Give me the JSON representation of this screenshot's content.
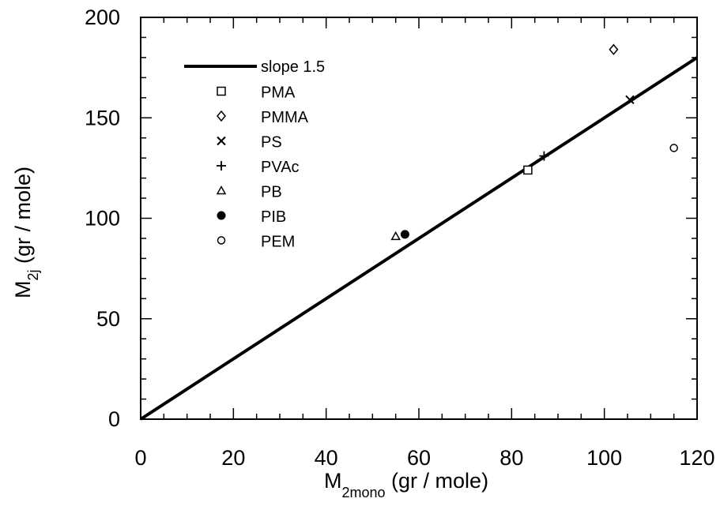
{
  "chart_data": {
    "type": "scatter",
    "title": "",
    "xlabel": {
      "main": "M",
      "sub": "2mono",
      "unit": "(gr / mole)"
    },
    "ylabel": {
      "main": "M",
      "sub": "2j",
      "unit": "(gr / mole)"
    },
    "xlim": [
      0,
      120
    ],
    "ylim": [
      0,
      200
    ],
    "x_ticks": [
      "0",
      "20",
      "40",
      "60",
      "80",
      "100",
      "120"
    ],
    "y_ticks": [
      "0",
      "50",
      "100",
      "150",
      "200"
    ],
    "grid": false,
    "legend_position": "top-left",
    "fit_line": {
      "name": "slope 1.5",
      "slope": 1.5,
      "x": [
        0,
        120
      ],
      "y": [
        0,
        180
      ]
    },
    "series": [
      {
        "name": "PMA",
        "marker": "square",
        "points": [
          [
            83.5,
            124
          ]
        ]
      },
      {
        "name": "PMMA",
        "marker": "diamond",
        "points": [
          [
            102,
            184
          ]
        ]
      },
      {
        "name": "PS",
        "marker": "x",
        "points": [
          [
            105.5,
            159
          ]
        ]
      },
      {
        "name": "PVAc",
        "marker": "plus",
        "points": [
          [
            87,
            131
          ]
        ]
      },
      {
        "name": "PB",
        "marker": "triangle",
        "points": [
          [
            55,
            91
          ]
        ]
      },
      {
        "name": "PIB",
        "marker": "filled-circle",
        "points": [
          [
            57,
            92
          ]
        ]
      },
      {
        "name": "PEM",
        "marker": "open-circle",
        "points": [
          [
            115,
            135
          ]
        ]
      }
    ]
  }
}
